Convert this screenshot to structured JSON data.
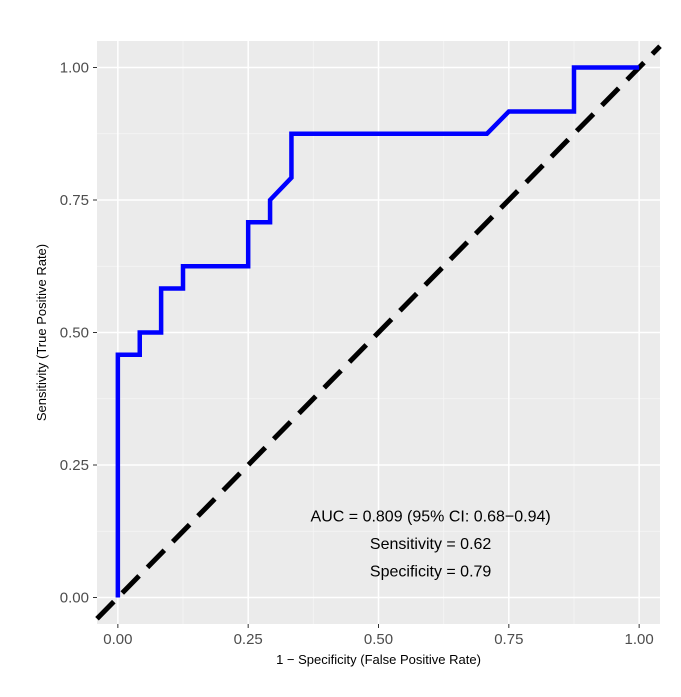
{
  "chart_data": {
    "type": "line",
    "title": "",
    "xlabel": "1 − Specificity (False Positive Rate)",
    "ylabel": "Sensitivity (True Positive Rate)",
    "xlim": [
      -0.04,
      1.04
    ],
    "ylim": [
      -0.05,
      1.05
    ],
    "x_ticks": [
      0.0,
      0.25,
      0.5,
      0.75,
      1.0
    ],
    "x_tick_labels": [
      "0.00",
      "0.25",
      "0.50",
      "0.75",
      "1.00"
    ],
    "y_ticks": [
      0.0,
      0.25,
      0.5,
      0.75,
      1.0
    ],
    "y_tick_labels": [
      "0.00",
      "0.25",
      "0.50",
      "0.75",
      "1.00"
    ],
    "grid": true,
    "background_color": "#ebebeb",
    "series": [
      {
        "color": "#0000ff",
        "style": "solid",
        "x": [
          0,
          0,
          0.042,
          0.042,
          0.083,
          0.083,
          0.125,
          0.125,
          0.25,
          0.25,
          0.292,
          0.292,
          0.333,
          0.333,
          0.708,
          0.75,
          0.875,
          0.875,
          1.0
        ],
        "y": [
          0,
          0.458,
          0.458,
          0.5,
          0.5,
          0.583,
          0.583,
          0.625,
          0.625,
          0.708,
          0.708,
          0.75,
          0.792,
          0.875,
          0.875,
          0.917,
          0.917,
          1.0,
          1.0
        ]
      },
      {
        "color": "#000000",
        "style": "dashed",
        "x": [
          -0.04,
          1.04
        ],
        "y": [
          -0.04,
          1.04
        ]
      }
    ],
    "annotations": [
      "AUC = 0.809 (95% CI: 0.68−0.94)",
      "Sensitivity = 0.62",
      "Specificity = 0.79"
    ],
    "annotation_positions": [
      {
        "x": 0.6,
        "y": 0.155
      },
      {
        "x": 0.6,
        "y": 0.103
      },
      {
        "x": 0.6,
        "y": 0.051
      }
    ]
  }
}
